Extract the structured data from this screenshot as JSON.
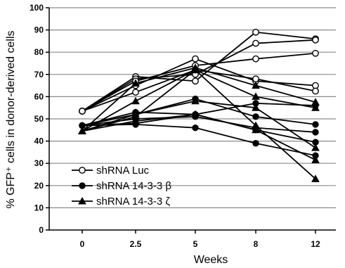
{
  "chart_data": {
    "type": "line",
    "title": "",
    "xlabel": "Weeks",
    "ylabel": "% GFP⁺ cells in donor-derived cells",
    "x": [
      "0",
      "2.5",
      "5",
      "8",
      "12"
    ],
    "ylim": [
      0,
      100
    ],
    "yticks": [
      "0",
      "10",
      "20",
      "30",
      "40",
      "50",
      "60",
      "70",
      "80",
      "90",
      "100"
    ],
    "grid": true,
    "legend_position": "bottom-left",
    "legend": [
      {
        "label": "shRNA Luc",
        "marker": "open-circle"
      },
      {
        "label": "shRNA 14-3-3 β",
        "marker": "filled-circle"
      },
      {
        "label": "shRNA 14-3-3 ζ",
        "marker": "filled-triangle"
      }
    ],
    "series": [
      {
        "group": "shRNA Luc",
        "marker": "open-circle",
        "values": [
          53.5,
          69,
          67,
          89,
          86
        ]
      },
      {
        "group": "shRNA Luc",
        "marker": "open-circle",
        "values": [
          53.5,
          68,
          70,
          84,
          85.5
        ]
      },
      {
        "group": "shRNA Luc",
        "marker": "open-circle",
        "values": [
          53.5,
          67,
          74,
          77,
          79.5
        ]
      },
      {
        "group": "shRNA Luc",
        "marker": "open-circle",
        "values": [
          53.5,
          65,
          77,
          67,
          65
        ]
      },
      {
        "group": "shRNA Luc",
        "marker": "open-circle",
        "values": [
          53.5,
          62,
          72,
          68,
          62.5
        ]
      },
      {
        "group": "shRNA 14-3-3 β",
        "marker": "filled-circle",
        "values": [
          47,
          53,
          52,
          57,
          56
        ]
      },
      {
        "group": "shRNA 14-3-3 β",
        "marker": "filled-circle",
        "values": [
          47,
          52,
          59,
          51,
          47.5
        ]
      },
      {
        "group": "shRNA 14-3-3 β",
        "marker": "filled-circle",
        "values": [
          47,
          50,
          51,
          46,
          44
        ]
      },
      {
        "group": "shRNA 14-3-3 β",
        "marker": "filled-circle",
        "values": [
          47,
          48,
          52,
          45,
          39.5
        ]
      },
      {
        "group": "shRNA 14-3-3 β",
        "marker": "filled-circle",
        "values": [
          47,
          47.5,
          46,
          39,
          33.5
        ]
      },
      {
        "group": "shRNA 14-3-3 ζ",
        "marker": "filled-triangle",
        "values": [
          44.5,
          66,
          73,
          65,
          57.5
        ]
      },
      {
        "group": "shRNA 14-3-3 ζ",
        "marker": "filled-triangle",
        "values": [
          44.5,
          58,
          72,
          60,
          55
        ]
      },
      {
        "group": "shRNA 14-3-3 ζ",
        "marker": "filled-triangle",
        "values": [
          44.5,
          52,
          58,
          55,
          37
        ]
      },
      {
        "group": "shRNA 14-3-3 ζ",
        "marker": "filled-triangle",
        "values": [
          44.5,
          49,
          52,
          45,
          31.5
        ]
      },
      {
        "group": "shRNA 14-3-3 ζ",
        "marker": "filled-triangle",
        "values": [
          44.5,
          51,
          72,
          47,
          23
        ]
      }
    ]
  }
}
